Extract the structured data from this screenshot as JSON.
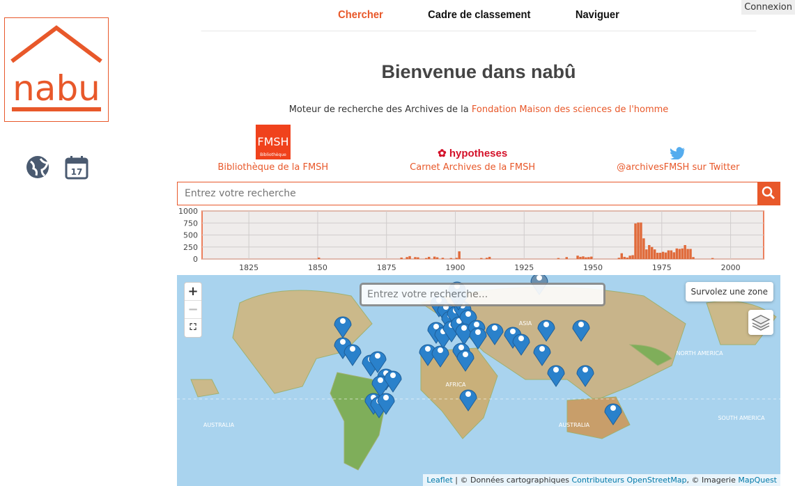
{
  "header": {
    "connexion": "Connexion",
    "nav": [
      {
        "label": "Chercher",
        "active": true
      },
      {
        "label": "Cadre de classement"
      },
      {
        "label": "Naviguer"
      }
    ]
  },
  "logo": {
    "text": "nabu"
  },
  "sidebar": {
    "icons": [
      "globe-icon",
      "calendar-icon"
    ],
    "calendar_day": "17"
  },
  "main": {
    "title": "Bienvenue dans nabû",
    "subtitle": "Moteur de recherche des Archives de la ",
    "subtitle_link": "Fondation Maison des sciences de l'homme",
    "links": [
      {
        "label": "Bibliothèque de la FMSH",
        "logo": "FMSH Bibliothèque"
      },
      {
        "label": "Carnet Archives de la FMSH",
        "logo": "hypotheses"
      },
      {
        "label": "@archivesFMSH sur Twitter",
        "icon": "twitter-icon"
      }
    ],
    "search_placeholder": "Entrez votre recherche"
  },
  "chart_data": {
    "type": "bar",
    "xlim": [
      1808,
      2012
    ],
    "ylim": [
      0,
      1000
    ],
    "yticks": [
      0,
      250,
      500,
      750,
      1000
    ],
    "xticks": [
      1825,
      1850,
      1875,
      1900,
      1925,
      1950,
      1975,
      2000
    ],
    "grid": true,
    "color": "#e06a3a",
    "points": [
      [
        1850,
        30
      ],
      [
        1880,
        30
      ],
      [
        1882,
        40
      ],
      [
        1883,
        60
      ],
      [
        1885,
        40
      ],
      [
        1886,
        35
      ],
      [
        1889,
        20
      ],
      [
        1890,
        45
      ],
      [
        1892,
        50
      ],
      [
        1893,
        35
      ],
      [
        1895,
        25
      ],
      [
        1898,
        20
      ],
      [
        1900,
        25
      ],
      [
        1901,
        160
      ],
      [
        1909,
        20
      ],
      [
        1911,
        25
      ],
      [
        1912,
        45
      ],
      [
        1937,
        20
      ],
      [
        1940,
        40
      ],
      [
        1944,
        70
      ],
      [
        1945,
        45
      ],
      [
        1946,
        55
      ],
      [
        1947,
        35
      ],
      [
        1948,
        40
      ],
      [
        1949,
        50
      ],
      [
        1959,
        25
      ],
      [
        1960,
        120
      ],
      [
        1961,
        45
      ],
      [
        1962,
        30
      ],
      [
        1963,
        70
      ],
      [
        1964,
        80
      ],
      [
        1965,
        740
      ],
      [
        1966,
        760
      ],
      [
        1967,
        760
      ],
      [
        1968,
        430
      ],
      [
        1969,
        200
      ],
      [
        1970,
        290
      ],
      [
        1971,
        250
      ],
      [
        1972,
        200
      ],
      [
        1973,
        130
      ],
      [
        1974,
        130
      ],
      [
        1975,
        150
      ],
      [
        1976,
        135
      ],
      [
        1977,
        180
      ],
      [
        1978,
        180
      ],
      [
        1979,
        140
      ],
      [
        1980,
        220
      ],
      [
        1981,
        210
      ],
      [
        1982,
        220
      ],
      [
        1983,
        290
      ],
      [
        1984,
        210
      ],
      [
        1985,
        210
      ],
      [
        1986,
        40
      ],
      [
        1993,
        20
      ]
    ]
  },
  "map": {
    "zoom_in": "+",
    "zoom_out": "−",
    "search_placeholder": "Entrez votre recherche...",
    "hover_hint": "Survolez une zone",
    "attribution": {
      "leaflet": "Leaflet",
      "sep": " | © Données cartographiques ",
      "osm": "Contributeurs OpenStreetMap",
      "imagery": ", © Imagerie ",
      "mapquest": "MapQuest"
    },
    "labels": [
      "ASIA",
      "AFRICA",
      "AUSTRALIA",
      "AUSTRALIA",
      "NORTH AMERICA",
      "SOUTH AMERICA"
    ]
  }
}
